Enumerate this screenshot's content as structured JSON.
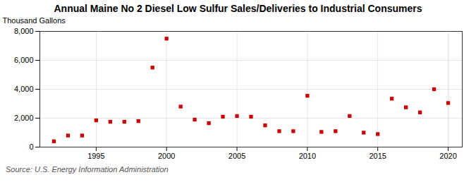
{
  "chart_data": {
    "type": "scatter",
    "title": "Annual Maine No 2 Diesel Low Sulfur Sales/Deliveries to Industrial Consumers",
    "ylabel": "Thousand Gallons",
    "source": "Source: U.S. Energy Information Administration",
    "x": [
      1992,
      1993,
      1994,
      1995,
      1996,
      1997,
      1998,
      1999,
      2000,
      2001,
      2002,
      2003,
      2004,
      2005,
      2006,
      2007,
      2008,
      2009,
      2010,
      2011,
      2012,
      2013,
      2014,
      2015,
      2016,
      2017,
      2018,
      2019,
      2020
    ],
    "values": [
      400,
      800,
      800,
      1850,
      1750,
      1750,
      1800,
      5500,
      7500,
      2800,
      1900,
      1650,
      2100,
      2150,
      2100,
      1500,
      1100,
      1100,
      3550,
      1050,
      1100,
      2150,
      1000,
      900,
      3350,
      2750,
      2400,
      4000,
      3050
    ],
    "color": "#cc0000",
    "marker": "square",
    "xlim": [
      1991,
      2021
    ],
    "xticks": [
      1995,
      2000,
      2005,
      2010,
      2015,
      2020
    ],
    "ylim": [
      0,
      8000
    ],
    "yticks": [
      0,
      {
        "value": 2000,
        "label": "2,000"
      },
      {
        "value": 4000,
        "label": "4,000"
      },
      {
        "value": 6000,
        "label": "6,000"
      },
      {
        "value": 8000,
        "label": "8,000"
      }
    ],
    "grid": true
  }
}
